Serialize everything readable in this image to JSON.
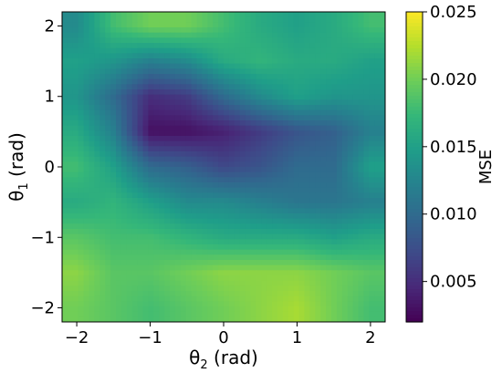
{
  "chart_data": {
    "type": "heatmap",
    "title": "",
    "xlabel": {
      "symbol": "θ",
      "sub": "2",
      "unit": " (rad)"
    },
    "ylabel": {
      "symbol": "θ",
      "sub": "1",
      "unit": " (rad)"
    },
    "xlim": [
      -2.2,
      2.2
    ],
    "ylim": [
      -2.2,
      2.2
    ],
    "xticks": [
      {
        "value": -2,
        "label": "−2"
      },
      {
        "value": -1,
        "label": "−1"
      },
      {
        "value": 0,
        "label": "0"
      },
      {
        "value": 1,
        "label": "1"
      },
      {
        "value": 2,
        "label": "2"
      }
    ],
    "yticks": [
      {
        "value": -2,
        "label": "−2"
      },
      {
        "value": -1,
        "label": "−1"
      },
      {
        "value": 0,
        "label": "0"
      },
      {
        "value": 1,
        "label": "1"
      },
      {
        "value": 2,
        "label": "2"
      }
    ],
    "colorbar": {
      "label": "MSE",
      "colormap": "viridis",
      "range": [
        0.002,
        0.025
      ],
      "ticks": [
        {
          "value": 0.005,
          "label": "0.005"
        },
        {
          "value": 0.01,
          "label": "0.010"
        },
        {
          "value": 0.015,
          "label": "0.015"
        },
        {
          "value": 0.02,
          "label": "0.020"
        },
        {
          "value": 0.025,
          "label": "0.025"
        }
      ]
    },
    "x": [
      -2.0,
      -1.5,
      -1.0,
      -0.5,
      0.0,
      0.5,
      1.0,
      1.5,
      2.0
    ],
    "y": [
      2.0,
      1.5,
      1.0,
      0.5,
      0.0,
      -0.5,
      -1.0,
      -1.5,
      -2.0
    ],
    "values": [
      [
        0.013,
        0.018,
        0.02,
        0.02,
        0.018,
        0.016,
        0.015,
        0.016,
        0.018
      ],
      [
        0.015,
        0.014,
        0.012,
        0.013,
        0.016,
        0.017,
        0.016,
        0.016,
        0.015
      ],
      [
        0.014,
        0.01,
        0.005,
        0.006,
        0.01,
        0.013,
        0.015,
        0.014,
        0.014
      ],
      [
        0.016,
        0.012,
        0.003,
        0.003,
        0.004,
        0.006,
        0.008,
        0.009,
        0.012
      ],
      [
        0.018,
        0.015,
        0.01,
        0.009,
        0.007,
        0.008,
        0.01,
        0.01,
        0.015
      ],
      [
        0.016,
        0.017,
        0.015,
        0.013,
        0.013,
        0.012,
        0.011,
        0.011,
        0.012
      ],
      [
        0.019,
        0.018,
        0.018,
        0.017,
        0.016,
        0.016,
        0.016,
        0.015,
        0.016
      ],
      [
        0.021,
        0.019,
        0.019,
        0.02,
        0.021,
        0.021,
        0.021,
        0.02,
        0.019
      ],
      [
        0.02,
        0.019,
        0.018,
        0.019,
        0.02,
        0.021,
        0.022,
        0.02,
        0.018
      ]
    ]
  }
}
